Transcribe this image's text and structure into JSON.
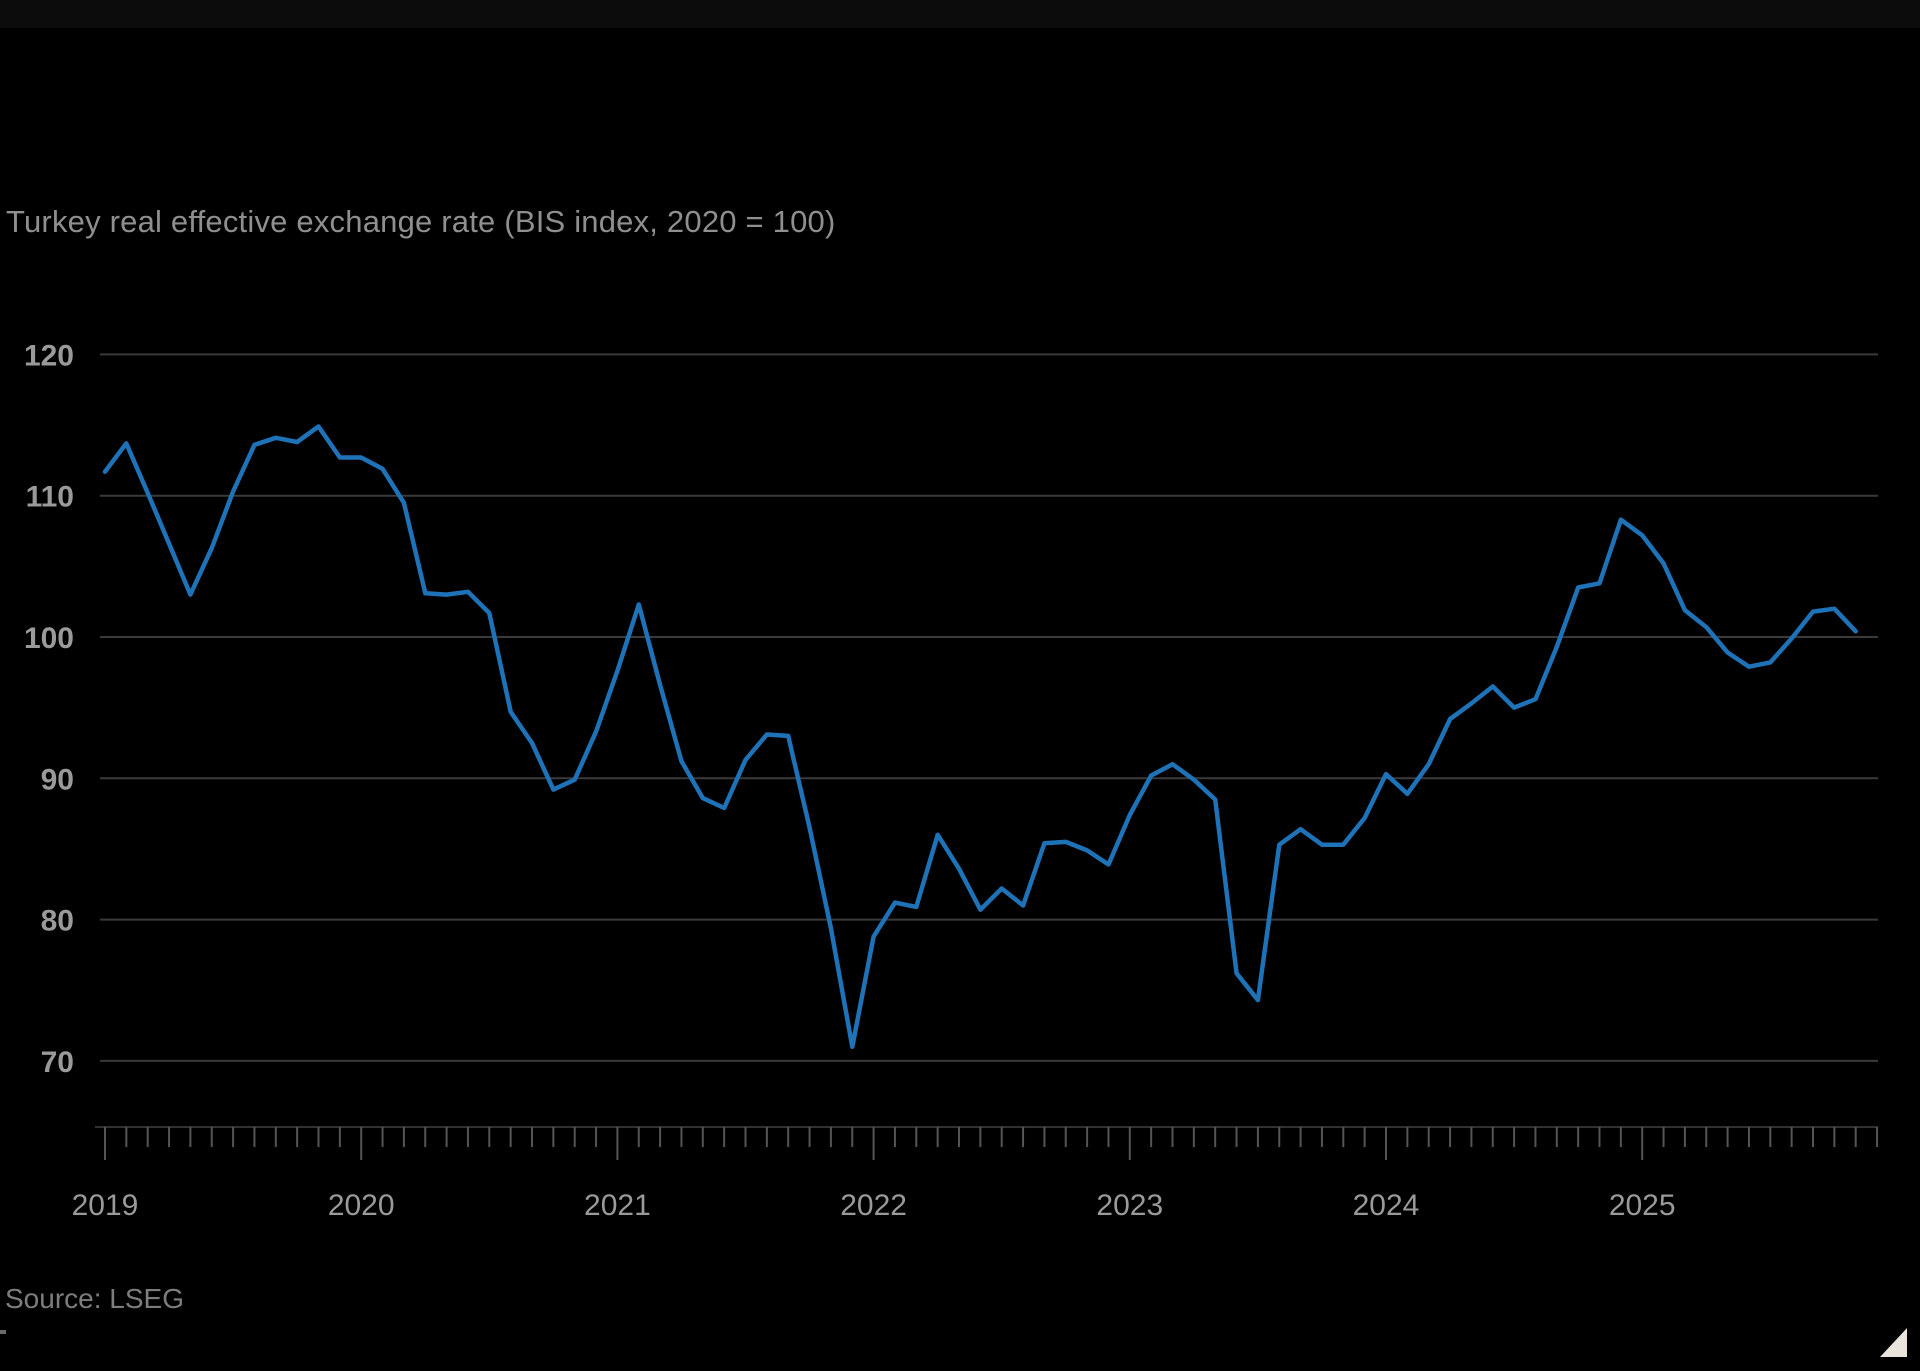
{
  "title": "Turkey real effective exchange rate (BIS index, 2020 = 100)",
  "source": "Source: LSEG",
  "colors": {
    "background": "#000000",
    "line": "#1e72b8",
    "gridline": "#3a3a3a",
    "axis_line": "#313131",
    "tick": "#555555",
    "tick_label": "#9a9a9a",
    "title_text": "#8f8f8f",
    "source_text": "#7d7d7d",
    "corner_triangle": "#eae5dc"
  },
  "corner_icon": "expand-triangle-icon",
  "chart_data": {
    "type": "line",
    "title": "Turkey real effective exchange rate (BIS index, 2020 = 100)",
    "series_name": "Turkey REER (BIS index, 2020 = 100)",
    "frequency": "monthly",
    "start": "2019-01",
    "end": "2025-11",
    "values": [
      111.7,
      113.7,
      110.2,
      106.6,
      103.0,
      106.3,
      110.3,
      113.6,
      114.1,
      113.8,
      114.9,
      112.7,
      112.7,
      111.9,
      109.5,
      103.1,
      103.0,
      103.2,
      101.7,
      94.7,
      92.5,
      89.2,
      89.9,
      93.3,
      97.6,
      102.3,
      96.6,
      91.2,
      88.6,
      87.9,
      91.3,
      93.1,
      93.0,
      86.5,
      79.4,
      71.0,
      78.8,
      81.2,
      80.9,
      86.0,
      83.6,
      80.7,
      82.2,
      81.0,
      85.4,
      85.5,
      84.9,
      83.9,
      87.4,
      90.2,
      91.0,
      89.9,
      88.5,
      76.2,
      74.3,
      85.3,
      86.4,
      85.3,
      85.3,
      87.2,
      90.3,
      88.9,
      91.0,
      94.2,
      95.3,
      96.5,
      95.0,
      95.6,
      99.3,
      103.5,
      103.8,
      108.3,
      107.2,
      105.2,
      101.9,
      100.7,
      98.9,
      97.9,
      98.2,
      99.9,
      101.8,
      102.0,
      100.4
    ],
    "y_ticks": [
      70,
      80,
      90,
      100,
      110,
      120
    ],
    "ylim": [
      66,
      123
    ],
    "x_tick_labels": [
      "2019",
      "2020",
      "2021",
      "2022",
      "2023",
      "2024",
      "2025"
    ],
    "x_minor_ticks": "monthly",
    "grid": "horizontal-only",
    "legend_position": "none"
  }
}
